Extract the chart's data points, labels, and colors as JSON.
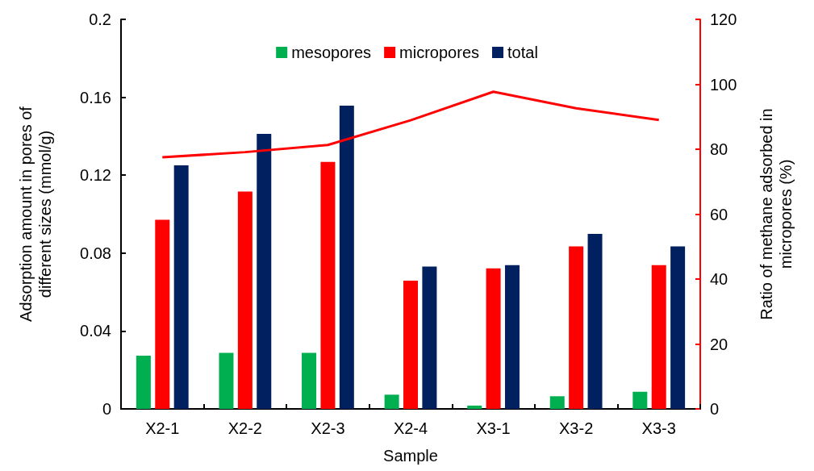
{
  "chart_data": {
    "type": "bar",
    "xlabel": "Sample",
    "ylabel": "Adsorption amount in pores of\ndifferent sizes (mmol/g)",
    "y2label": "Ratio of methane adsorbed in\nmicropores (%)",
    "categories": [
      "X2-1",
      "X2-2",
      "X2-3",
      "X2-4",
      "X3-1",
      "X3-2",
      "X3-3"
    ],
    "series": [
      {
        "name": "mesopores",
        "color": "#00b050",
        "values": [
          0.0273,
          0.0288,
          0.0288,
          0.0073,
          0.0017,
          0.0065,
          0.0088
        ]
      },
      {
        "name": "micropores",
        "color": "#ff0000",
        "values": [
          0.0971,
          0.1116,
          0.1268,
          0.0658,
          0.0722,
          0.0834,
          0.0738
        ]
      },
      {
        "name": "total",
        "color": "#002060",
        "values": [
          0.1251,
          0.1412,
          0.1557,
          0.0731,
          0.0738,
          0.0899,
          0.0834
        ]
      },
      {
        "type": "line",
        "axis": "y2",
        "color": "#ff0000",
        "values": [
          77.5,
          79.1,
          81.3,
          88.9,
          97.7,
          92.6,
          89.0
        ]
      }
    ],
    "ylim": [
      0,
      0.2
    ],
    "yticks": [
      0,
      0.04,
      0.08,
      0.12,
      0.16,
      0.2
    ],
    "y2lim": [
      0,
      120
    ],
    "y2ticks": [
      0,
      20,
      40,
      60,
      80,
      100,
      120
    ],
    "grid": false,
    "legend": "top",
    "marker": "none",
    "line_style": "solid"
  }
}
